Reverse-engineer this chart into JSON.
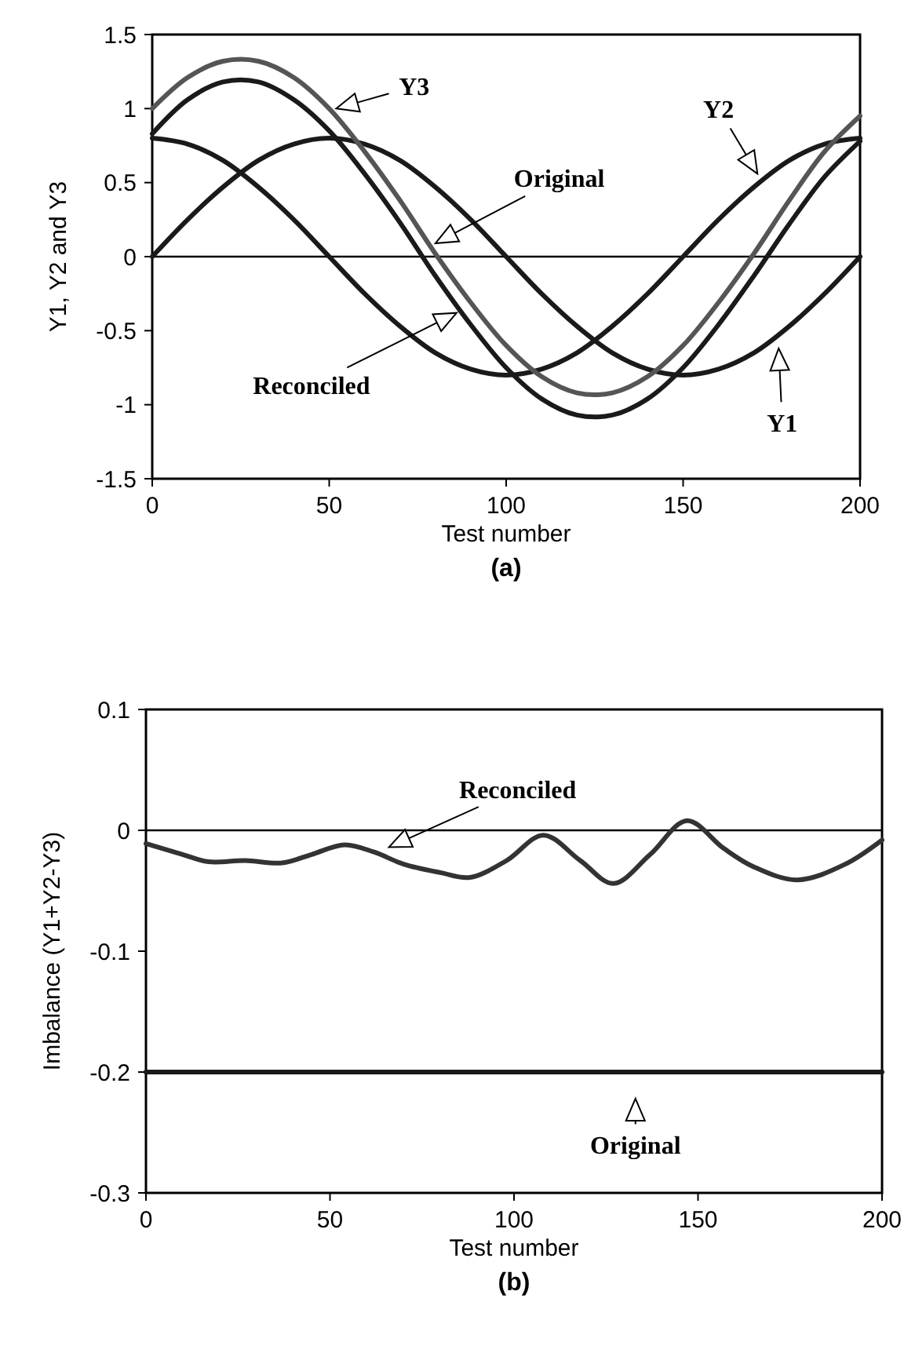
{
  "chart_data": [
    {
      "type": "line",
      "xlabel": "Test number",
      "ylabel": "Y1, Y2 and Y3",
      "xlim": [
        0,
        200
      ],
      "ylim": [
        -1.5,
        1.5
      ],
      "xticks": [
        0,
        50,
        100,
        150,
        200
      ],
      "yticks": [
        -1.5,
        -1,
        -0.5,
        0,
        0.5,
        1,
        1.5
      ],
      "grid": false,
      "marker": "none",
      "line_style": "solid",
      "x": [
        0,
        10,
        20,
        30,
        40,
        50,
        60,
        70,
        80,
        90,
        100,
        110,
        120,
        130,
        140,
        150,
        160,
        170,
        180,
        190,
        200
      ],
      "series": [
        {
          "color": "#1a1a1a",
          "values": [
            0,
            0.25,
            0.47,
            0.65,
            0.76,
            0.8,
            0.76,
            0.65,
            0.47,
            0.25,
            0,
            -0.25,
            -0.47,
            -0.65,
            -0.76,
            -0.8,
            -0.76,
            -0.65,
            -0.47,
            -0.25,
            0
          ]
        },
        {
          "color": "#1a1a1a",
          "values": [
            0.8,
            0.76,
            0.65,
            0.47,
            0.25,
            0,
            -0.25,
            -0.47,
            -0.65,
            -0.76,
            -0.8,
            -0.76,
            -0.65,
            -0.47,
            -0.25,
            0,
            0.25,
            0.47,
            0.65,
            0.76,
            0.8
          ]
        },
        {
          "color": "#555555",
          "values": [
            1.0,
            1.21,
            1.32,
            1.32,
            1.21,
            1.0,
            0.71,
            0.38,
            0.02,
            -0.31,
            -0.6,
            -0.81,
            -0.92,
            -0.92,
            -0.81,
            -0.6,
            -0.31,
            0.02,
            0.38,
            0.71,
            0.95
          ]
        },
        {
          "color": "#1a1a1a",
          "values": [
            0.83,
            1.06,
            1.18,
            1.18,
            1.06,
            0.85,
            0.56,
            0.23,
            -0.13,
            -0.46,
            -0.75,
            -0.96,
            -1.07,
            -1.07,
            -0.96,
            -0.75,
            -0.46,
            -0.13,
            0.22,
            0.54,
            0.78
          ]
        }
      ],
      "ref_lines": [
        {
          "axis": "y",
          "value": 0,
          "color": "#000000"
        }
      ],
      "annotations": [
        "Y3",
        "Original",
        "Reconciled",
        "Y2",
        "Y1",
        "(a)"
      ]
    },
    {
      "type": "line",
      "xlabel": "Test number",
      "ylabel": "Imbalance (Y1+Y2-Y3)",
      "xlim": [
        0,
        200
      ],
      "ylim": [
        -0.3,
        0.1
      ],
      "xticks": [
        0,
        50,
        100,
        150,
        200
      ],
      "yticks": [
        -0.3,
        -0.2,
        -0.1,
        0,
        0.1
      ],
      "grid": false,
      "marker": "none",
      "line_style": "solid",
      "series": [
        {
          "color": "#1a1a1a",
          "x": [
            0,
            200
          ],
          "values": [
            -0.2,
            -0.2
          ]
        },
        {
          "color": "#333333",
          "x": [
            0,
            10,
            17,
            27,
            37,
            45,
            54,
            62,
            70,
            80,
            88,
            98,
            108,
            118,
            127,
            137,
            147,
            157,
            165,
            177,
            190,
            200
          ],
          "values": [
            -0.011,
            -0.02,
            -0.026,
            -0.025,
            -0.027,
            -0.02,
            -0.012,
            -0.018,
            -0.028,
            -0.035,
            -0.039,
            -0.025,
            -0.004,
            -0.025,
            -0.044,
            -0.02,
            0.008,
            -0.015,
            -0.03,
            -0.041,
            -0.028,
            -0.008
          ]
        }
      ],
      "ref_lines": [
        {
          "axis": "y",
          "value": 0,
          "color": "#000000"
        }
      ],
      "annotations": [
        "Reconciled",
        "Original",
        "(b)"
      ]
    }
  ]
}
